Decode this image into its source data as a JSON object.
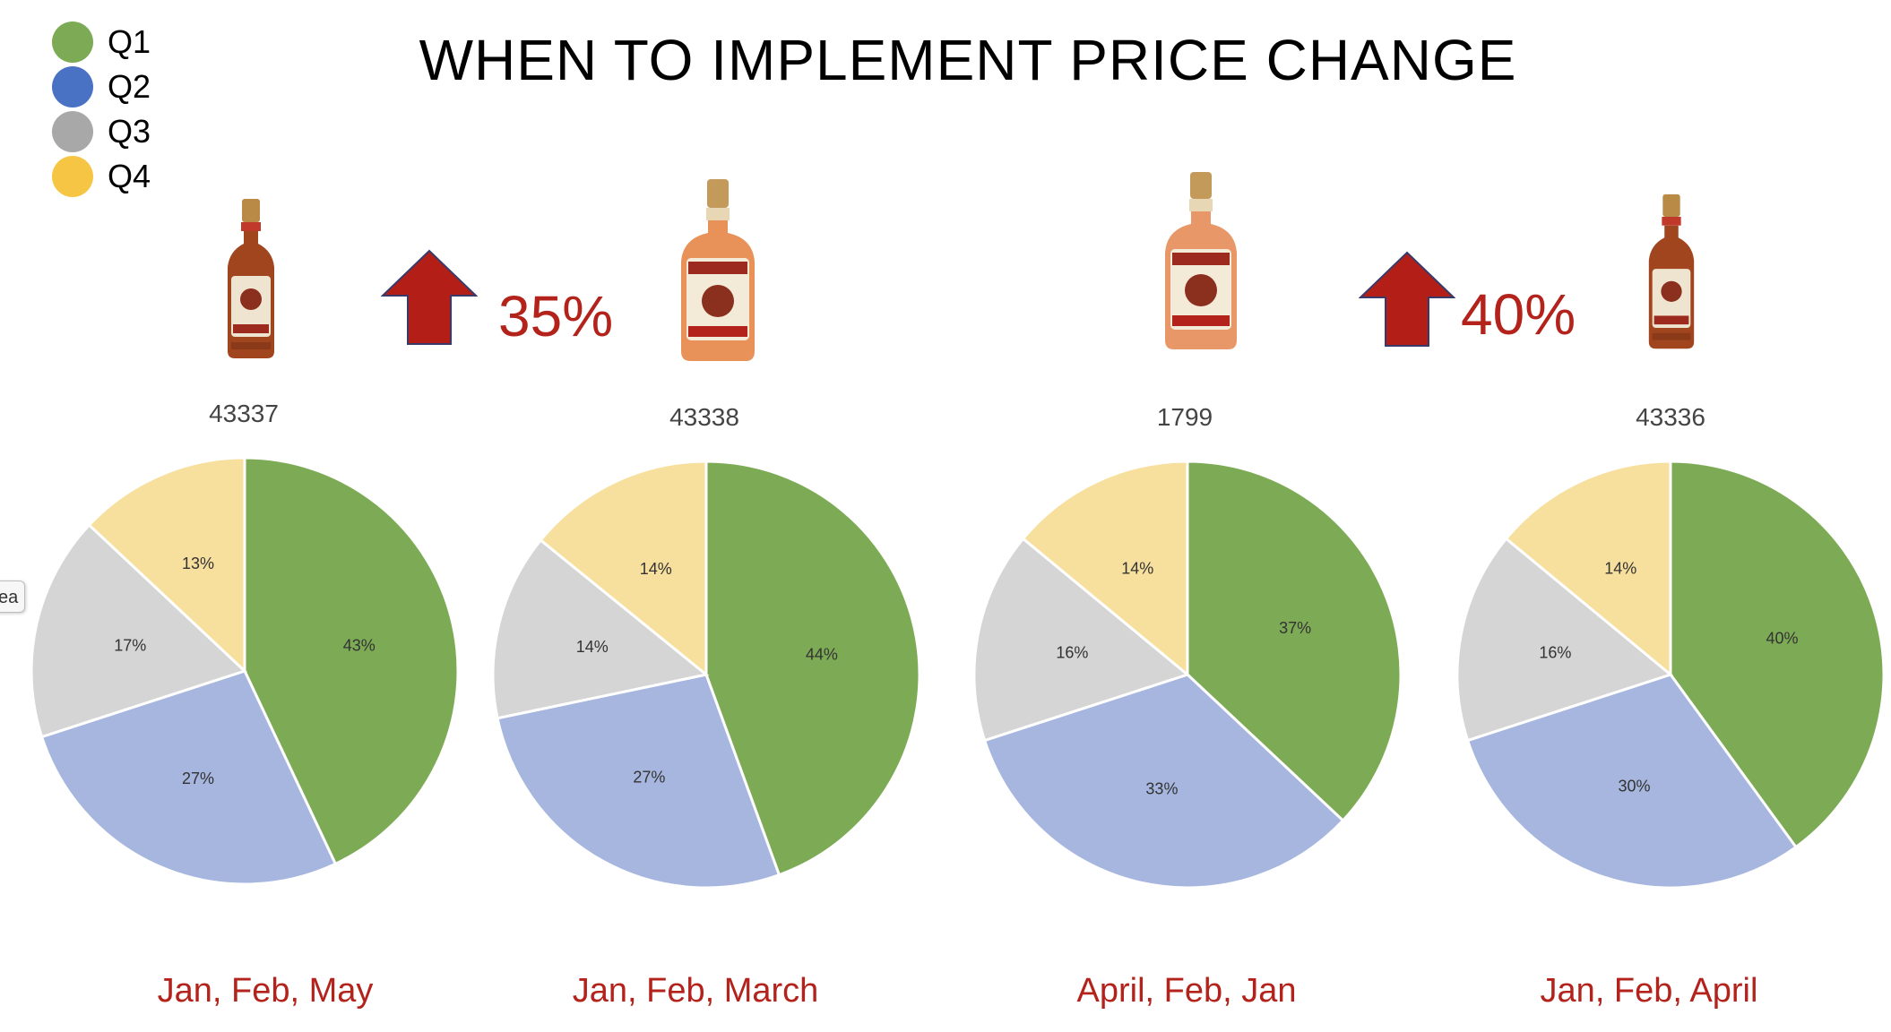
{
  "title": "WHEN TO IMPLEMENT PRICE CHANGE",
  "legend": [
    {
      "label": "Q1",
      "color": "#7dab55"
    },
    {
      "label": "Q2",
      "color": "#4a72c4"
    },
    {
      "label": "Q3",
      "color": "#a8a8a8"
    },
    {
      "label": "Q4",
      "color": "#f6c544"
    }
  ],
  "edge_tab_text": "ea",
  "price_changes": [
    {
      "value": "35%"
    },
    {
      "value": "40%"
    }
  ],
  "icons": {
    "arrow": "up-arrow-icon",
    "bottle": "rum-bottle-icon"
  },
  "colors": {
    "q1": "#7dab55",
    "q2": "#a6b6de",
    "q3": "#d5d5d5",
    "q4": "#f7df9d",
    "accent_red": "#b3231c",
    "arrow_red": "#b31f16"
  },
  "chart_data": [
    {
      "type": "pie",
      "title": "43337",
      "categories": [
        "Q1",
        "Q2",
        "Q3",
        "Q4"
      ],
      "values": [
        43,
        27,
        17,
        13
      ],
      "labels": [
        "43%",
        "27%",
        "17%",
        "13%"
      ],
      "caption": "Jan, Feb, May"
    },
    {
      "type": "pie",
      "title": "43338",
      "categories": [
        "Q1",
        "Q2",
        "Q3",
        "Q4"
      ],
      "values": [
        44,
        27,
        14,
        14
      ],
      "labels": [
        "44%",
        "27%",
        "14%",
        "14%"
      ],
      "caption": "Jan, Feb, March"
    },
    {
      "type": "pie",
      "title": "1799",
      "categories": [
        "Q1",
        "Q2",
        "Q3",
        "Q4"
      ],
      "values": [
        37,
        33,
        16,
        14
      ],
      "labels": [
        "37%",
        "33%",
        "16%",
        "14%"
      ],
      "caption": "April, Feb, Jan"
    },
    {
      "type": "pie",
      "title": "43336",
      "categories": [
        "Q1",
        "Q2",
        "Q3",
        "Q4"
      ],
      "values": [
        40,
        30,
        16,
        14
      ],
      "labels": [
        "40%",
        "30%",
        "16%",
        "14%"
      ],
      "caption": "Jan, Feb, April"
    }
  ]
}
